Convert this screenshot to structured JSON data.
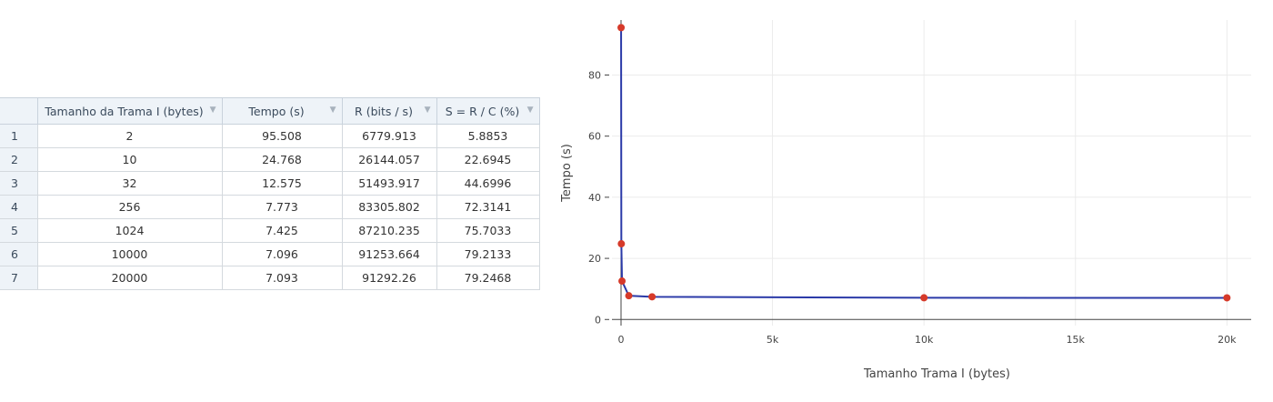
{
  "table": {
    "columns": [
      {
        "label": "Tamanho da Trama I (bytes)"
      },
      {
        "label": "Tempo (s)"
      },
      {
        "label": "R (bits / s)"
      },
      {
        "label": "S = R / C (%)"
      }
    ],
    "rows": [
      {
        "index": "1",
        "cells": [
          "2",
          "95.508",
          "6779.913",
          "5.8853"
        ]
      },
      {
        "index": "2",
        "cells": [
          "10",
          "24.768",
          "26144.057",
          "22.6945"
        ]
      },
      {
        "index": "3",
        "cells": [
          "32",
          "12.575",
          "51493.917",
          "44.6996"
        ]
      },
      {
        "index": "4",
        "cells": [
          "256",
          "7.773",
          "83305.802",
          "72.3141"
        ]
      },
      {
        "index": "5",
        "cells": [
          "1024",
          "7.425",
          "87210.235",
          "75.7033"
        ]
      },
      {
        "index": "6",
        "cells": [
          "10000",
          "7.096",
          "91253.664",
          "79.2133"
        ]
      },
      {
        "index": "7",
        "cells": [
          "20000",
          "7.093",
          "91292.26",
          "79.2468"
        ]
      }
    ]
  },
  "chart_data": {
    "type": "line",
    "title": "",
    "xlabel": "Tamanho Trama I (bytes)",
    "ylabel": "Tempo (s)",
    "xlim": [
      -300,
      20800
    ],
    "ylim": [
      -2,
      98
    ],
    "x_ticks": [
      {
        "v": 0,
        "label": "0"
      },
      {
        "v": 5000,
        "label": "5k"
      },
      {
        "v": 10000,
        "label": "10k"
      },
      {
        "v": 15000,
        "label": "15k"
      },
      {
        "v": 20000,
        "label": "20k"
      }
    ],
    "y_ticks": [
      {
        "v": 0,
        "label": "0"
      },
      {
        "v": 20,
        "label": "20"
      },
      {
        "v": 40,
        "label": "40"
      },
      {
        "v": 60,
        "label": "60"
      },
      {
        "v": 80,
        "label": "80"
      }
    ],
    "grid": true,
    "legend": "none",
    "series": [
      {
        "x": [
          2,
          10,
          32,
          256,
          1024,
          10000,
          20000
        ],
        "y": [
          95.508,
          24.768,
          12.575,
          7.773,
          7.425,
          7.096,
          7.093
        ],
        "line_color": "#2b3aa8",
        "marker_color": "#d63a2a"
      }
    ]
  }
}
